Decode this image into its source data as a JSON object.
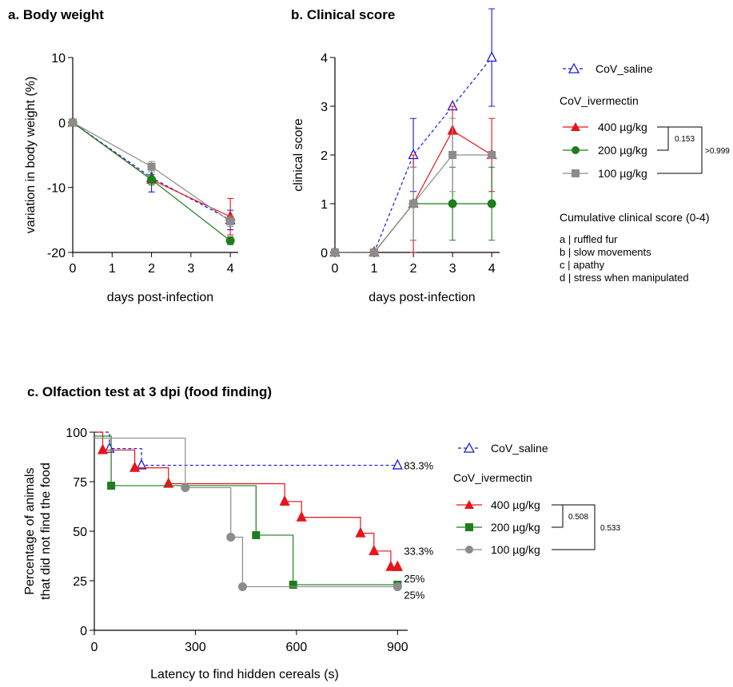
{
  "colors": {
    "saline": "#1a1adb",
    "iv400": "#e8141b",
    "iv200": "#1e7d1e",
    "iv100": "#8c8c8c"
  },
  "chart_data": [
    {
      "id": "a",
      "type": "line",
      "title": "a. Body weight",
      "xlabel": "days post-infection",
      "ylabel": "variation in body weight (%)",
      "xlim": [
        0,
        4.2
      ],
      "ylim": [
        -20,
        10
      ],
      "xticks": [
        0,
        1,
        2,
        3,
        4
      ],
      "yticks": [
        -20,
        -10,
        0,
        10
      ],
      "series": [
        {
          "key": "saline",
          "marker": "triangle-open",
          "dashed": true,
          "x": [
            0,
            2,
            4
          ],
          "y": [
            0,
            -8.5,
            -15
          ],
          "err": [
            0,
            2.2,
            1.5
          ]
        },
        {
          "key": "iv400",
          "marker": "triangle",
          "dashed": false,
          "x": [
            0,
            2,
            4
          ],
          "y": [
            0,
            -8.8,
            -14.5
          ],
          "err": [
            0,
            0.8,
            2.8
          ]
        },
        {
          "key": "iv200",
          "marker": "circle",
          "dashed": false,
          "x": [
            0,
            2,
            4
          ],
          "y": [
            0,
            -8.8,
            -18.2
          ],
          "err": [
            0,
            0.8,
            0.6
          ]
        },
        {
          "key": "iv100",
          "marker": "square",
          "dashed": false,
          "x": [
            0,
            2,
            4
          ],
          "y": [
            0,
            -6.8,
            -15.2
          ],
          "err": [
            0,
            0.8,
            0.8
          ]
        }
      ]
    },
    {
      "id": "b",
      "type": "line",
      "title": "b. Clinical score",
      "xlabel": "days post-infection",
      "ylabel": "clinical score",
      "xlim": [
        0,
        4.2
      ],
      "ylim": [
        0,
        4
      ],
      "xticks": [
        0,
        1,
        2,
        3,
        4
      ],
      "yticks": [
        0,
        1,
        2,
        3,
        4
      ],
      "series": [
        {
          "key": "saline",
          "marker": "triangle-open",
          "dashed": true,
          "x": [
            0,
            1,
            2,
            3,
            4
          ],
          "y": [
            0,
            0,
            2,
            3,
            4
          ],
          "err": [
            0,
            0,
            0.75,
            0,
            1
          ]
        },
        {
          "key": "iv400",
          "marker": "triangle",
          "dashed": false,
          "x": [
            0,
            1,
            2,
            3,
            4
          ],
          "y": [
            0,
            0,
            1,
            2.5,
            2
          ],
          "err": [
            0,
            0,
            1,
            0.5,
            0.75
          ]
        },
        {
          "key": "iv200",
          "marker": "circle",
          "dashed": false,
          "x": [
            0,
            1,
            2,
            3,
            4
          ],
          "y": [
            0,
            0,
            1,
            1,
            1
          ],
          "err": [
            0,
            0,
            0.75,
            0.75,
            0.75
          ]
        },
        {
          "key": "iv100",
          "marker": "square",
          "dashed": false,
          "x": [
            0,
            1,
            2,
            3,
            4
          ],
          "y": [
            0,
            0,
            1,
            2,
            2
          ],
          "err": [
            0,
            0,
            0.75,
            0.75,
            0
          ]
        }
      ]
    },
    {
      "id": "c",
      "type": "line",
      "title": "c. Olfaction test at 3 dpi (food finding)",
      "xlabel": "Latency to find hidden cereals (s)",
      "ylabel": "Percentage of animals that did not find the food",
      "ylabel_lines": [
        "Percentage of animals",
        "that did not find the food"
      ],
      "xlim": [
        0,
        930
      ],
      "ylim": [
        0,
        100
      ],
      "xticks": [
        0,
        300,
        600,
        900
      ],
      "yticks": [
        0,
        25,
        50,
        75,
        100
      ],
      "series": [
        {
          "key": "saline",
          "marker": "triangle-open",
          "dashed": true,
          "end_label": "83.3%",
          "events": [
            45,
            140
          ],
          "y": [
            100,
            91.7,
            83.3
          ],
          "end_x": 900
        },
        {
          "key": "iv400",
          "marker": "triangle",
          "dashed": false,
          "end_label": "33.3%",
          "events": [
            25,
            120,
            220,
            565,
            615,
            790,
            830,
            880,
            900
          ],
          "y": [
            100,
            91,
            82,
            74,
            65,
            57,
            49,
            40,
            32,
            32
          ],
          "end_x": 900
        },
        {
          "key": "iv200",
          "marker": "square",
          "dashed": false,
          "end_label": "25%",
          "events": [
            50,
            480,
            590
          ],
          "y": [
            98,
            73,
            48,
            23
          ],
          "end_x": 900
        },
        {
          "key": "iv100",
          "marker": "circle",
          "dashed": false,
          "end_label": "25%",
          "events": [
            270,
            405,
            440
          ],
          "y": [
            97,
            72,
            47,
            22
          ],
          "end_x": 900
        }
      ]
    }
  ],
  "legend_ab": {
    "saline": "CoV_saline",
    "group": "CoV_ivermectin",
    "iv400": "400 µg/kg",
    "iv200": "200 µg/kg",
    "iv100": "100 µg/kg",
    "p_inner": "0.153",
    "p_outer": ">0.999",
    "score_title": "Cumulative clinical score (0-4)",
    "score_items": [
      "a | ruffled fur",
      "b | slow movements",
      "c | apathy",
      "d | stress when manipulated"
    ]
  },
  "legend_c": {
    "saline": "CoV_saline",
    "group": "CoV_ivermectin",
    "iv400": "400 µg/kg",
    "iv200": "200 µg/kg",
    "iv100": "100 µg/kg",
    "p_inner": "0.508",
    "p_outer": "0.533"
  }
}
